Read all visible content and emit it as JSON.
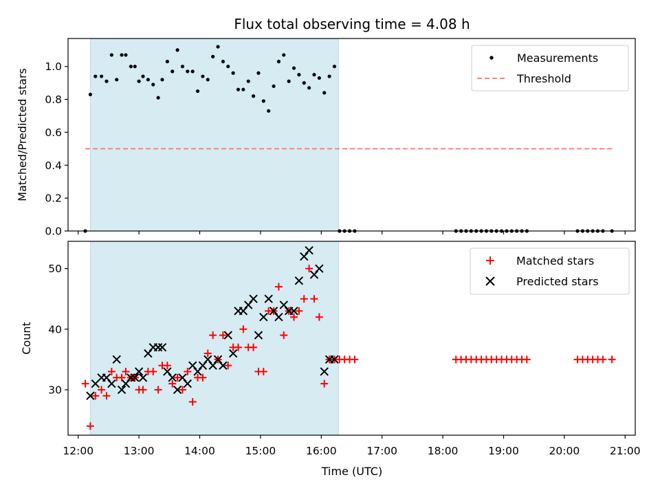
{
  "figure": {
    "title": "Flux total observing time = 4.08 h",
    "xlabel": "Time (UTC)"
  },
  "chart_data": [
    {
      "type": "scatter",
      "ylabel": "Matched/Predicted stars",
      "xlim": [
        "11:50",
        "21:10"
      ],
      "ylim": [
        0,
        1.17
      ],
      "yticks": [
        "0.0",
        "0.2",
        "0.4",
        "0.6",
        "0.8",
        "1.0"
      ],
      "yticks_values": [
        0,
        0.2,
        0.4,
        0.6,
        0.8,
        1.0
      ],
      "xticks": [
        "12:00",
        "13:00",
        "14:00",
        "15:00",
        "16:00",
        "17:00",
        "18:00",
        "19:00",
        "20:00",
        "21:00"
      ],
      "shaded_span": [
        "12:12",
        "16:17"
      ],
      "shaded_color": "#add8e6",
      "legend_position": "upper right",
      "legend": [
        {
          "name": "Measurements",
          "marker": "dot",
          "color": "#000000"
        },
        {
          "name": "Threshold",
          "marker": "dashed-line",
          "color": "#ff7f7f"
        }
      ],
      "threshold": {
        "value": 0.5,
        "x_range": [
          "12:07",
          "20:47"
        ]
      },
      "series": [
        {
          "name": "Measurements",
          "x": [
            "12:07",
            "12:12",
            "12:17",
            "12:23",
            "12:28",
            "12:33",
            "12:38",
            "12:43",
            "12:47",
            "12:52",
            "12:56",
            "13:00",
            "13:04",
            "13:09",
            "13:14",
            "13:19",
            "13:23",
            "13:28",
            "13:33",
            "13:38",
            "13:43",
            "13:48",
            "13:53",
            "13:58",
            "14:03",
            "14:08",
            "14:13",
            "14:18",
            "14:23",
            "14:28",
            "14:33",
            "14:38",
            "14:43",
            "14:48",
            "14:53",
            "14:58",
            "15:03",
            "15:08",
            "15:13",
            "15:18",
            "15:23",
            "15:28",
            "15:33",
            "15:38",
            "15:43",
            "15:48",
            "15:53",
            "15:58",
            "16:03",
            "16:08",
            "16:13",
            "16:18",
            "16:23",
            "16:28",
            "16:33",
            "18:13",
            "18:18",
            "18:23",
            "18:28",
            "18:33",
            "18:38",
            "18:43",
            "18:48",
            "18:53",
            "18:58",
            "19:03",
            "19:08",
            "19:13",
            "19:18",
            "19:23",
            "20:13",
            "20:18",
            "20:23",
            "20:28",
            "20:33",
            "20:38",
            "20:47"
          ],
          "y": [
            0.0,
            0.83,
            0.94,
            0.94,
            0.91,
            1.07,
            0.92,
            1.07,
            1.07,
            1.0,
            1.0,
            0.91,
            0.94,
            0.92,
            0.89,
            0.81,
            0.92,
            1.03,
            0.97,
            1.1,
            1.0,
            0.97,
            0.97,
            0.85,
            0.94,
            0.92,
            1.06,
            1.12,
            1.03,
            1.0,
            0.96,
            0.86,
            0.86,
            0.91,
            0.82,
            0.96,
            0.79,
            0.73,
            0.88,
            1.03,
            1.07,
            0.91,
            0.99,
            0.95,
            0.9,
            0.87,
            0.95,
            0.93,
            0.84,
            0.94,
            1.0,
            0.0,
            0.0,
            0.0,
            0.0,
            0.0,
            0.0,
            0.0,
            0.0,
            0.0,
            0.0,
            0.0,
            0.0,
            0.0,
            0.0,
            0.0,
            0.0,
            0.0,
            0.0,
            0.0,
            0.0,
            0.0,
            0.0,
            0.0,
            0.0,
            0.0,
            0.0
          ]
        }
      ]
    },
    {
      "type": "scatter",
      "ylabel": "Count",
      "xlim": [
        "11:50",
        "21:10"
      ],
      "ylim": [
        22.5,
        54.5
      ],
      "yticks": [
        "30",
        "40",
        "50"
      ],
      "yticks_values": [
        30,
        40,
        50
      ],
      "xticks": [
        "12:00",
        "13:00",
        "14:00",
        "15:00",
        "16:00",
        "17:00",
        "18:00",
        "19:00",
        "20:00",
        "21:00"
      ],
      "shaded_span": [
        "12:12",
        "16:17"
      ],
      "shaded_color": "#add8e6",
      "legend_position": "upper right",
      "legend": [
        {
          "name": "Matched stars",
          "marker": "plus",
          "color": "#ff0000"
        },
        {
          "name": "Predicted stars",
          "marker": "x",
          "color": "#000000"
        }
      ],
      "series": [
        {
          "name": "Matched stars",
          "marker": "plus",
          "color": "#ff0000",
          "x": [
            "12:07",
            "12:12",
            "12:17",
            "12:23",
            "12:28",
            "12:33",
            "12:38",
            "12:43",
            "12:47",
            "12:52",
            "12:56",
            "13:00",
            "13:04",
            "13:09",
            "13:14",
            "13:19",
            "13:23",
            "13:28",
            "13:33",
            "13:38",
            "13:43",
            "13:48",
            "13:53",
            "13:58",
            "14:03",
            "14:08",
            "14:13",
            "14:18",
            "14:23",
            "14:28",
            "14:33",
            "14:38",
            "14:43",
            "14:48",
            "14:53",
            "14:58",
            "15:03",
            "15:08",
            "15:13",
            "15:18",
            "15:23",
            "15:28",
            "15:33",
            "15:38",
            "15:43",
            "15:48",
            "15:53",
            "15:58",
            "16:03",
            "16:08",
            "16:13",
            "16:18",
            "16:23",
            "16:28",
            "16:33",
            "18:13",
            "18:18",
            "18:23",
            "18:28",
            "18:33",
            "18:38",
            "18:43",
            "18:48",
            "18:53",
            "18:58",
            "19:03",
            "19:08",
            "19:13",
            "19:18",
            "19:23",
            "20:13",
            "20:18",
            "20:23",
            "20:28",
            "20:33",
            "20:38",
            "20:47"
          ],
          "y": [
            31,
            24,
            29,
            30,
            29,
            33,
            32,
            32,
            33,
            32,
            32,
            30,
            30,
            33,
            33,
            30,
            34,
            34,
            31,
            32,
            30,
            33,
            28,
            32,
            32,
            36,
            39,
            35,
            39,
            34,
            37,
            37,
            40,
            37,
            37,
            33,
            33,
            43,
            43,
            47,
            39,
            43,
            42,
            43,
            45,
            50,
            45,
            42,
            31,
            35,
            35,
            35,
            35,
            35,
            35,
            35,
            35,
            35,
            35,
            35,
            35,
            35,
            35,
            35,
            35,
            35,
            35,
            35,
            35,
            35,
            35,
            35,
            35,
            35,
            35,
            35,
            35
          ]
        },
        {
          "name": "Predicted stars",
          "marker": "x",
          "color": "#000000",
          "x": [
            "12:12",
            "12:17",
            "12:23",
            "12:28",
            "12:33",
            "12:38",
            "12:43",
            "12:47",
            "12:52",
            "12:56",
            "13:00",
            "13:04",
            "13:09",
            "13:14",
            "13:19",
            "13:23",
            "13:28",
            "13:33",
            "13:38",
            "13:43",
            "13:48",
            "13:53",
            "13:58",
            "14:03",
            "14:08",
            "14:13",
            "14:18",
            "14:23",
            "14:28",
            "14:33",
            "14:38",
            "14:43",
            "14:48",
            "14:53",
            "14:58",
            "15:03",
            "15:08",
            "15:13",
            "15:18",
            "15:23",
            "15:28",
            "15:33",
            "15:38",
            "15:43",
            "15:48",
            "15:53",
            "15:58",
            "16:03",
            "16:08",
            "16:13"
          ],
          "y": [
            29,
            31,
            32,
            32,
            31,
            35,
            30,
            31,
            32,
            32,
            33,
            32,
            36,
            37,
            37,
            37,
            33,
            32,
            30,
            32,
            31,
            34,
            33,
            34,
            35,
            34,
            35,
            34,
            39,
            36,
            43,
            43,
            44,
            45,
            39,
            42,
            45,
            43,
            42,
            44,
            43,
            43,
            48,
            52,
            53,
            49,
            50,
            33,
            35,
            35
          ]
        }
      ]
    }
  ]
}
